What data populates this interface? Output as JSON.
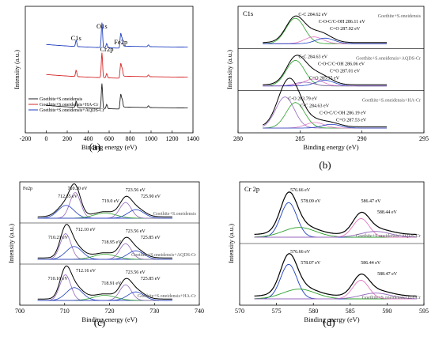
{
  "panels": {
    "a": {
      "label": "(a)"
    },
    "b": {
      "label": "(b)"
    },
    "c": {
      "label": "(c)"
    },
    "d": {
      "label": "(d)"
    }
  },
  "chart_data": [
    {
      "panel": "a",
      "type": "line",
      "xlabel": "Binding energy (eV)",
      "ylabel": "Intensity (a.u.)",
      "xlim": [
        -200,
        1400
      ],
      "xticks": [
        -200,
        0,
        200,
        400,
        600,
        800,
        1000,
        1200,
        1400
      ],
      "peak_labels": [
        {
          "text": "C1s",
          "x": 285
        },
        {
          "text": "O1s",
          "x": 531
        },
        {
          "text": "Cr2p",
          "x": 577
        },
        {
          "text": "Fe2p",
          "x": 711
        }
      ],
      "legend": [
        "Goethite+S.oneidensis",
        "Goethite+S.oneidensis+HA-Cr",
        "Goethite+S.oneidensis+AQDS-Cr"
      ],
      "series": [
        {
          "name": "Goethite+S.oneidensis",
          "color": "#222222",
          "offset": 0.0
        },
        {
          "name": "Goethite+S.oneidensis+HA-Cr",
          "color": "#d62728",
          "offset": 0.55
        },
        {
          "name": "Goethite+S.oneidensis+AQDS-Cr",
          "color": "#1f3fbf",
          "offset": 1.1
        }
      ],
      "peaks": [
        [
          285,
          0.18
        ],
        [
          531,
          0.7
        ],
        [
          577,
          0.12
        ],
        [
          711,
          0.35
        ],
        [
          725,
          0.2
        ],
        [
          975,
          0.05
        ]
      ]
    },
    {
      "panel": "b",
      "type": "line",
      "title": "C1s",
      "xlabel": "Binding energy (eV)",
      "ylabel": "Intensity (a.u.)",
      "xlim": [
        280,
        295
      ],
      "xticks": [
        280,
        285,
        290,
        295
      ],
      "spectra": [
        {
          "sample": "Goethite+S.oneidensis",
          "components": [
            {
              "name": "C-C",
              "center": 284.62,
              "label": "C-C 284.62 eV",
              "color": "#2ca02c"
            },
            {
              "name": "C-O-C/C-OH",
              "center": 286.11,
              "label": "C-O-C/C-OH 286.11 eV",
              "color": "#e377c2"
            },
            {
              "name": "C=O",
              "center": 287.02,
              "label": "C=O 287.02 eV",
              "color": "#1f3fbf"
            }
          ]
        },
        {
          "sample": "Goethite+S.oneidensis+AQDS-Cr",
          "components": [
            {
              "name": "C-C",
              "center": 284.63,
              "label": "C-C 284.63 eV",
              "color": "#2ca02c"
            },
            {
              "name": "C-O-C/C-OH",
              "center": 286.06,
              "label": "C-O-C/C-OH 286.06 eV",
              "color": "#e377c2"
            },
            {
              "name": "C=O",
              "center": 287.01,
              "label": "C=O 287.01 eV",
              "color": "#1f3fbf"
            },
            {
              "name": "C=O extra",
              "center": 285.35,
              "label": "C=O 285.35 eV",
              "color": "#9467bd"
            }
          ]
        },
        {
          "sample": "Goethite+S.oneidensis+HA-Cr",
          "components": [
            {
              "name": "C-O",
              "center": 283.79,
              "label": "C-O 283.79 eV",
              "color": "#9467bd"
            },
            {
              "name": "C-C",
              "center": 284.63,
              "label": "C-C 284.63 eV",
              "color": "#2ca02c"
            },
            {
              "name": "C-O-C/C-OH",
              "center": 286.19,
              "label": "C-O-C/C-OH 286.19 eV",
              "color": "#e377c2"
            },
            {
              "name": "C=O",
              "center": 287.53,
              "label": "C=O 287.53 eV",
              "color": "#1f3fbf"
            }
          ]
        }
      ]
    },
    {
      "panel": "c",
      "type": "line",
      "title": "Fe2p",
      "xlabel": "Binding energy (eV)",
      "ylabel": "Intensity (a.u.)",
      "xlim": [
        700,
        740
      ],
      "xticks": [
        700,
        710,
        720,
        730,
        740
      ],
      "spectra": [
        {
          "sample": "Goethite+S.oneidensis",
          "peak_labels": [
            {
              "text": "712.35 eV",
              "x": 712.35
            },
            {
              "text": "710.30 eV",
              "x": 710.3
            },
            {
              "text": "719.0 eV",
              "x": 719.0
            },
            {
              "text": "723.56 eV",
              "x": 723.56
            },
            {
              "text": "725.90 eV",
              "x": 725.9
            }
          ]
        },
        {
          "sample": "Goethite+S.oneidensis+AQDS-Cr",
          "peak_labels": [
            {
              "text": "710.21 eV",
              "x": 710.21
            },
            {
              "text": "712.10 eV",
              "x": 712.1
            },
            {
              "text": "718.95 eV",
              "x": 718.95
            },
            {
              "text": "723.56 eV",
              "x": 723.56
            },
            {
              "text": "725.85 eV",
              "x": 725.85
            }
          ]
        },
        {
          "sample": "Goethite+S.oneidensis+HA-Cr",
          "peak_labels": [
            {
              "text": "710.16 eV",
              "x": 710.16
            },
            {
              "text": "712.16 eV",
              "x": 712.16
            },
            {
              "text": "718.91 eV",
              "x": 718.91
            },
            {
              "text": "723.56 eV",
              "x": 723.56
            },
            {
              "text": "725.85 eV",
              "x": 725.85
            }
          ]
        }
      ]
    },
    {
      "panel": "d",
      "type": "line",
      "title": "Cr 2p",
      "xlabel": "Binding energy (eV)",
      "ylabel": "Intensity (a.u.)",
      "xlim": [
        570,
        595
      ],
      "xticks": [
        570,
        575,
        580,
        585,
        590,
        595
      ],
      "spectra": [
        {
          "sample": "Goethite+S.oneidensis+AQDS-Cr",
          "peak_labels": [
            {
              "text": "576.66 eV",
              "x": 576.66
            },
            {
              "text": "578.09 eV",
              "x": 578.09
            },
            {
              "text": "586.47 eV",
              "x": 586.47
            },
            {
              "text": "588.44 eV",
              "x": 588.44
            }
          ]
        },
        {
          "sample": "Goethite+S.oneidensis+HA-Cr",
          "peak_labels": [
            {
              "text": "576.66 eV",
              "x": 576.66
            },
            {
              "text": "578.07 eV",
              "x": 578.07
            },
            {
              "text": "586.44 eV",
              "x": 586.44
            },
            {
              "text": "588.47 eV",
              "x": 588.47
            }
          ]
        }
      ]
    }
  ]
}
